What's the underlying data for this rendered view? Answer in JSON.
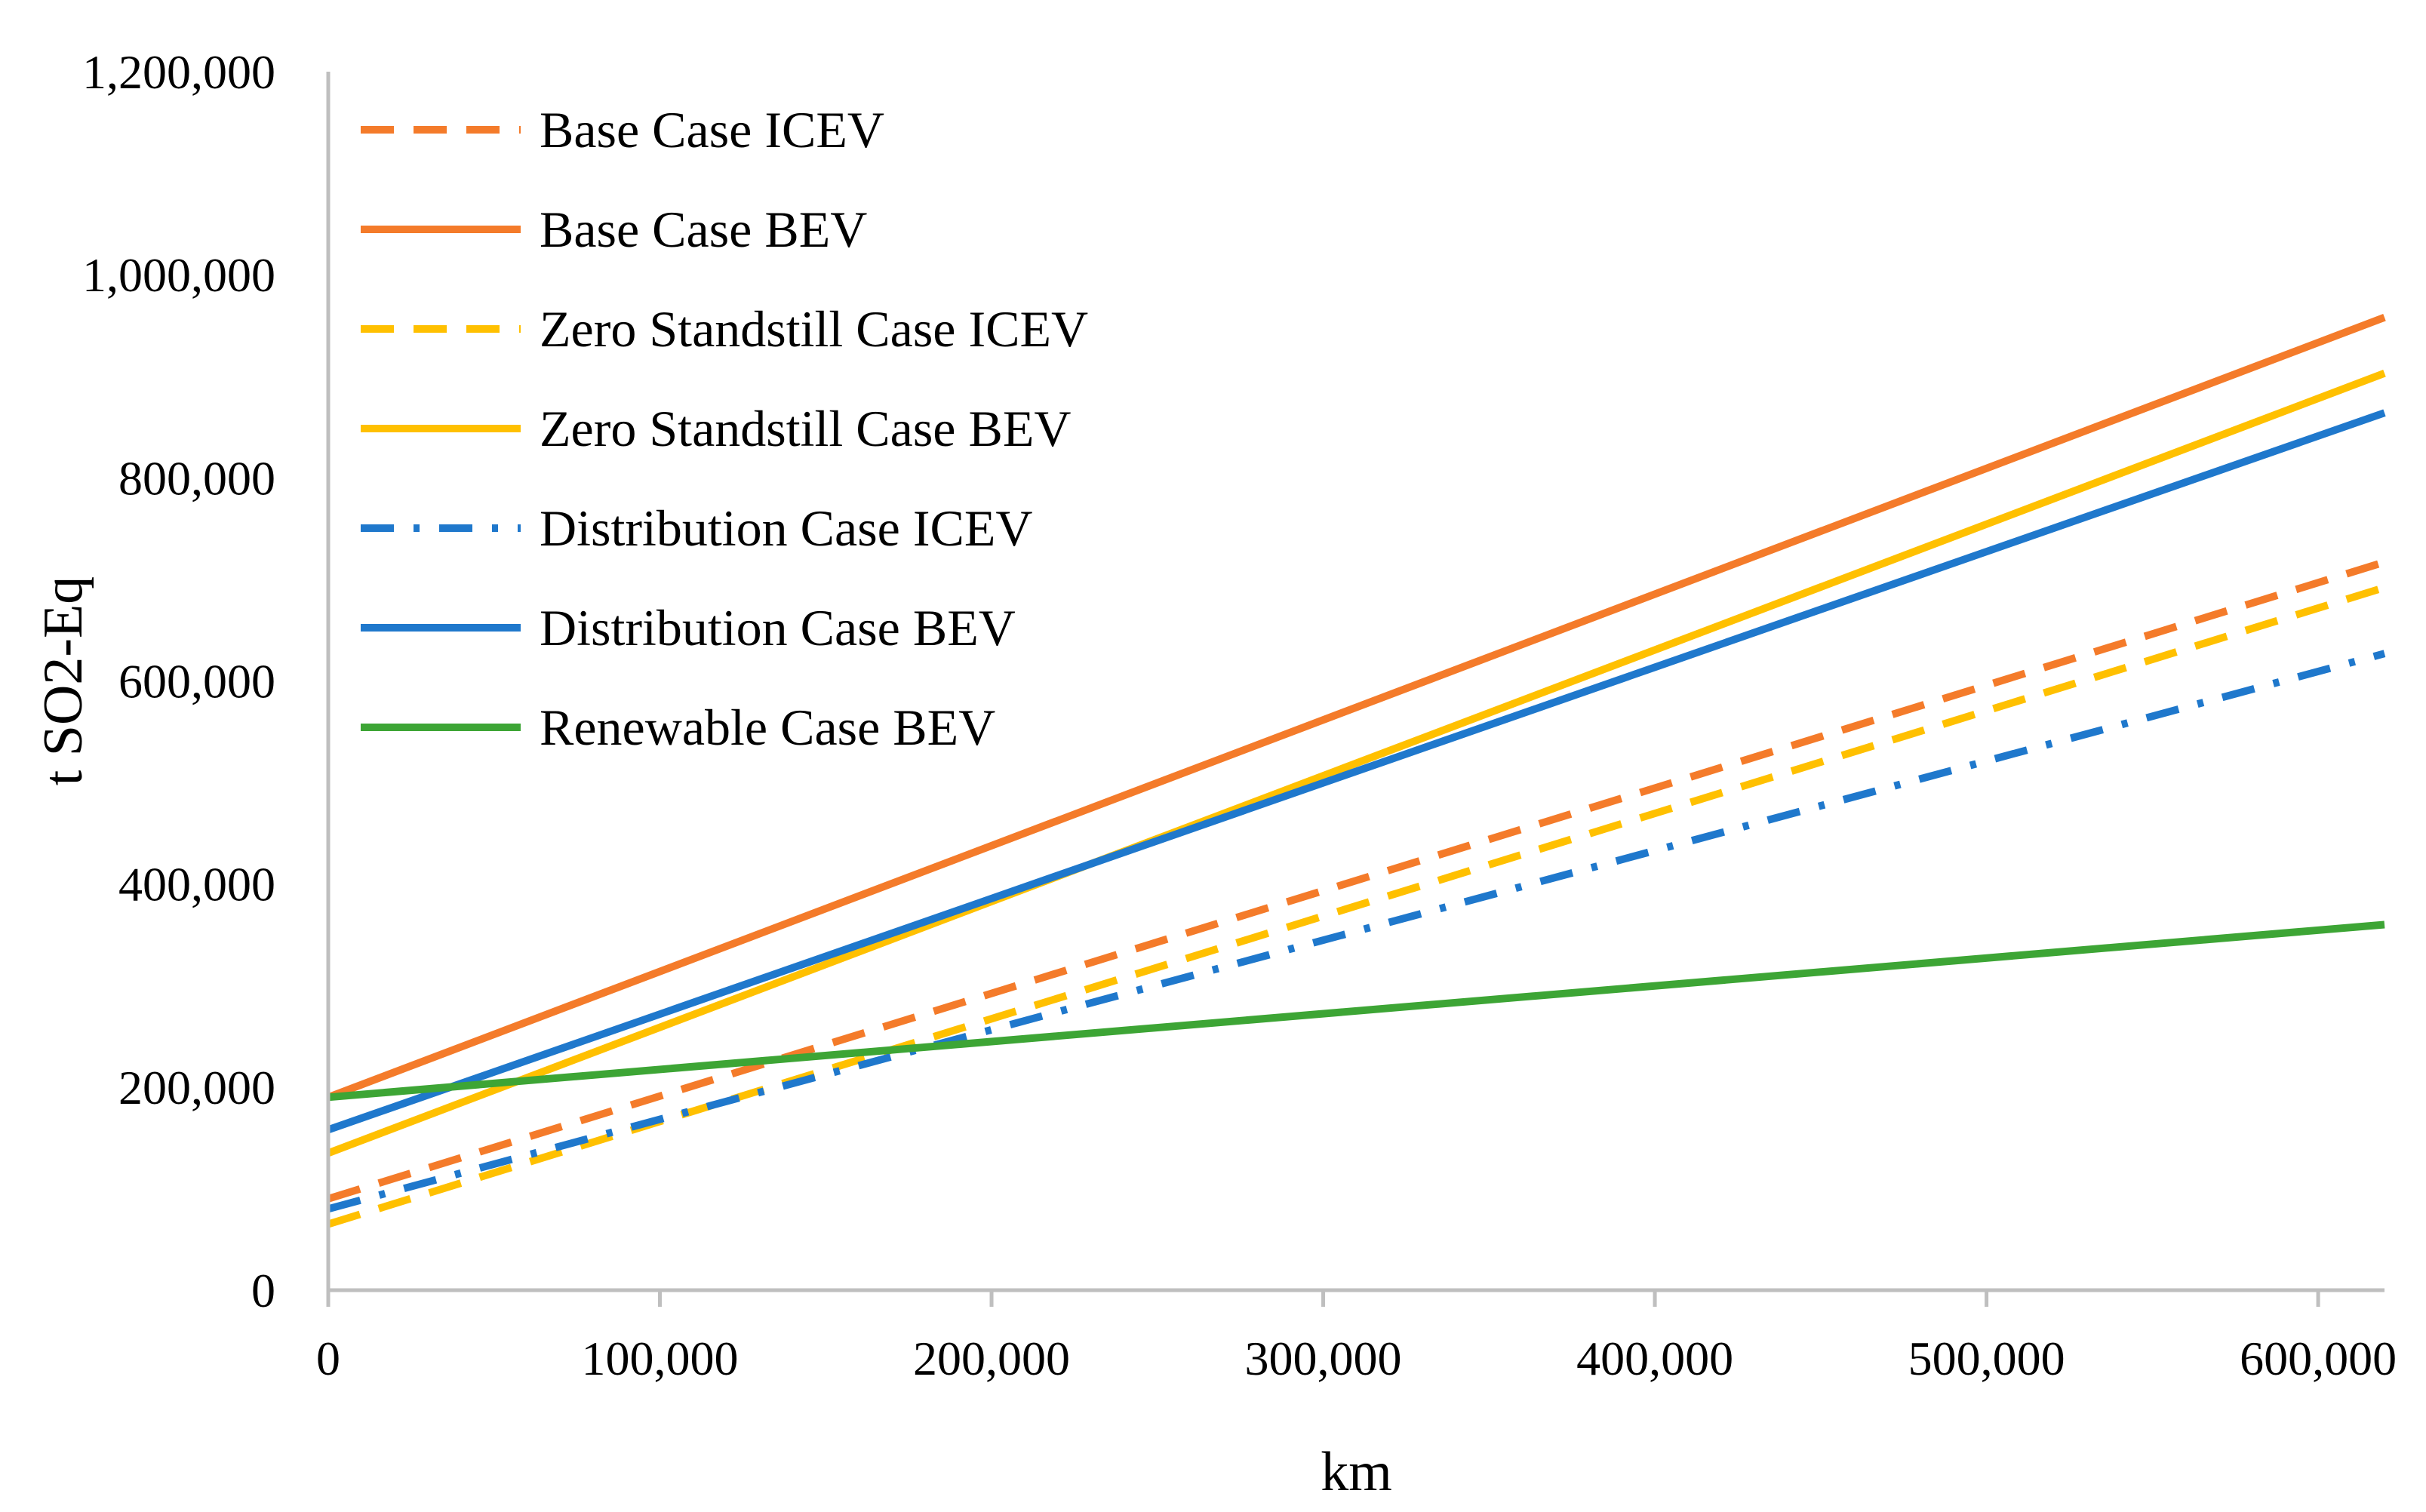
{
  "chart_data": {
    "type": "line",
    "title": "",
    "xlabel": "km",
    "ylabel": "t SO2-Eq",
    "xlim": [
      0,
      620000
    ],
    "ylim": [
      0,
      1200000
    ],
    "xticks": [
      0,
      100000,
      200000,
      300000,
      400000,
      500000,
      600000
    ],
    "yticks": [
      0,
      200000,
      400000,
      600000,
      800000,
      1000000,
      1200000
    ],
    "xtick_labels": [
      "0",
      "100,000",
      "200,000",
      "300,000",
      "400,000",
      "500,000",
      "600,000"
    ],
    "ytick_labels": [
      "0",
      "200,000",
      "400,000",
      "600,000",
      "800,000",
      "1,000,000",
      "1,200,000"
    ],
    "grid": false,
    "legend_position": "top-left",
    "series": [
      {
        "name": "Base Case ICEV",
        "x": [
          0,
          620000
        ],
        "y": [
          90000,
          717000
        ],
        "color": "#F47B2A",
        "style": "dashed"
      },
      {
        "name": "Base Case BEV",
        "x": [
          0,
          620000
        ],
        "y": [
          190000,
          958000
        ],
        "color": "#F47B2A",
        "style": "solid"
      },
      {
        "name": "Zero Standstill Case ICEV",
        "x": [
          0,
          620000
        ],
        "y": [
          65000,
          692000
        ],
        "color": "#FFC000",
        "style": "dashed"
      },
      {
        "name": "Zero Standstill Case BEV",
        "x": [
          0,
          620000
        ],
        "y": [
          135000,
          903000
        ],
        "color": "#FFC000",
        "style": "solid"
      },
      {
        "name": "Distribution Case ICEV",
        "x": [
          0,
          620000
        ],
        "y": [
          80000,
          627000
        ],
        "color": "#1F78CC",
        "style": "dashdot"
      },
      {
        "name": "Distribution Case BEV",
        "x": [
          0,
          620000
        ],
        "y": [
          158000,
          864000
        ],
        "color": "#1F78CC",
        "style": "solid"
      },
      {
        "name": "Renewable Case BEV",
        "x": [
          0,
          620000
        ],
        "y": [
          190000,
          360000
        ],
        "color": "#3DA535",
        "style": "solid"
      }
    ]
  }
}
